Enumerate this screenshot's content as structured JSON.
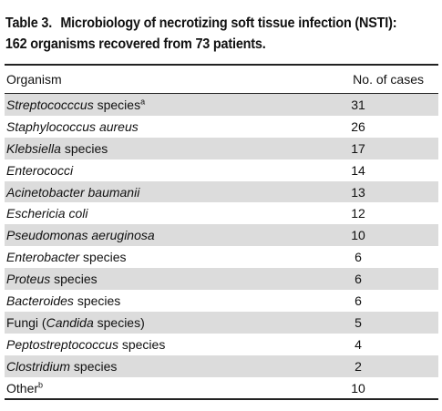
{
  "caption": {
    "label": "Table 3.",
    "title_line1": "Microbiology of necrotizing soft tissue infection (NSTI):",
    "title_line2": "162 organisms recovered from 73 patients."
  },
  "columns": {
    "organism": "Organism",
    "cases": "No. of cases"
  },
  "rows": [
    {
      "italic": "Streptococccus",
      "plain_after": " species",
      "sup": "a",
      "cases": "31"
    },
    {
      "italic": "Staphylococcus aureus",
      "cases": "26"
    },
    {
      "italic": "Klebsiella",
      "plain_after": " species",
      "cases": "17"
    },
    {
      "italic": "Enterococci",
      "cases": "14"
    },
    {
      "italic": "Acinetobacter baumanii",
      "cases": "13"
    },
    {
      "italic": "Eschericia coli",
      "cases": "12"
    },
    {
      "italic": "Pseudomonas aeruginosa",
      "cases": "10"
    },
    {
      "italic": "Enterobacter",
      "plain_after": " species",
      "cases": "6"
    },
    {
      "italic": "Proteus",
      "plain_after": " species",
      "cases": "6"
    },
    {
      "italic": "Bacteroides",
      "plain_after": " species",
      "cases": "6"
    },
    {
      "plain_before": "Fungi (",
      "italic": "Candida",
      "plain_after": " species)",
      "cases": "5"
    },
    {
      "italic": "Peptostreptococcus",
      "plain_after": " species",
      "cases": "4"
    },
    {
      "italic": "Clostridium",
      "plain_after": " species",
      "cases": "2"
    },
    {
      "plain_before": "Other",
      "sup": "b",
      "cases": "10"
    }
  ]
}
